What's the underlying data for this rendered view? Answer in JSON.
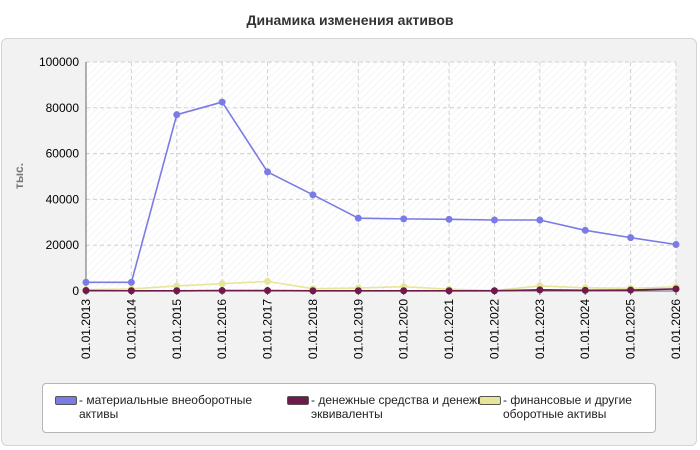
{
  "chart_data": {
    "type": "line",
    "title": "Динамика изменения активов",
    "ylabel": "тыс.",
    "xlabel": "",
    "categories": [
      "01.01.2013",
      "01.01.2014",
      "01.01.2015",
      "01.01.2016",
      "01.01.2017",
      "01.01.2018",
      "01.01.2019",
      "01.01.2020",
      "01.01.2021",
      "01.01.2022",
      "01.01.2023",
      "01.01.2024",
      "01.01.2025",
      "01.01.2026"
    ],
    "ylim": [
      0,
      100000
    ],
    "yticks": [
      "0",
      "20000",
      "40000",
      "60000",
      "80000",
      "100000"
    ],
    "grid": true,
    "legend_position": "bottom",
    "series": [
      {
        "name": "- материальные внеоборотные активы",
        "color": "#7b7be6",
        "values": [
          3800,
          3800,
          77000,
          82500,
          52000,
          42000,
          31800,
          31500,
          31300,
          31000,
          31000,
          26500,
          23300,
          20300
        ]
      },
      {
        "name": "- денежные средства и денежные эквиваленты",
        "color": "#6e1a4b",
        "values": [
          200,
          100,
          100,
          200,
          200,
          100,
          100,
          100,
          100,
          100,
          500,
          300,
          400,
          900
        ]
      },
      {
        "name": "- финансовые и другие оборотные активы",
        "color": "#e6e69a",
        "values": [
          600,
          900,
          2200,
          3200,
          4200,
          1000,
          1300,
          1900,
          800,
          200,
          2200,
          1400,
          1200,
          1800
        ]
      }
    ]
  }
}
